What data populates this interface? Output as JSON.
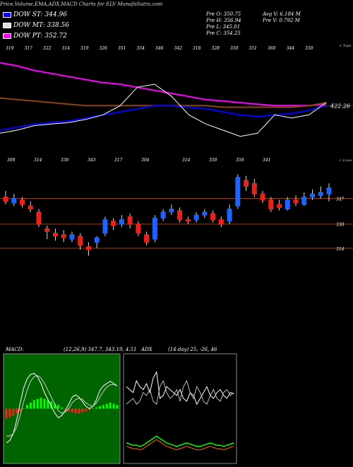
{
  "header": {
    "title": "Price,Volume,EMA,ADX,MACD Charts for ELV MunafaSutra.com"
  },
  "legend": [
    {
      "label": "DOW ST: 344.96",
      "color": "#0000ff"
    },
    {
      "label": "DOW MT: 338.56",
      "color": "#e0e0e0"
    },
    {
      "label": "DOW PT: 352.72",
      "color": "#ff00ff"
    }
  ],
  "stats": {
    "left": [
      "Pre O: 350.75",
      "Pre H: 356.94",
      "Pre L: 345.01",
      "Pre C: 354.25"
    ],
    "right": [
      "Avg V: 6.184 M",
      "Pre V: 0.792 M",
      "",
      ""
    ]
  },
  "chart_data": [
    {
      "type": "line",
      "name": "ema-panel",
      "top_label": "< Tops",
      "top_values": [
        "319",
        "317",
        "322",
        "314",
        "319",
        "326",
        "351",
        "354",
        "346",
        "342",
        "318",
        "328",
        "350",
        "351",
        "360",
        "344",
        "350"
      ],
      "level_label": "422.26",
      "series": [
        {
          "color": "#ff00ff",
          "values": [
            406,
            404,
            401,
            399,
            397,
            395,
            393,
            392,
            390,
            388,
            386,
            384,
            382,
            381,
            380,
            379,
            378,
            378,
            378,
            379
          ]
        },
        {
          "color": "#8b4513",
          "values": [
            383,
            382,
            381,
            380,
            379,
            378,
            378,
            378,
            378,
            378,
            378,
            378,
            378,
            377,
            377,
            377,
            377,
            377,
            378,
            380
          ]
        },
        {
          "color": "#0000ff",
          "values": [
            362,
            364,
            366,
            367,
            368,
            370,
            372,
            374,
            376,
            378,
            378,
            377,
            376,
            374,
            372,
            371,
            372,
            373,
            375,
            378
          ]
        },
        {
          "color": "#ffffff",
          "values": [
            360,
            362,
            365,
            366,
            367,
            369,
            372,
            378,
            390,
            392,
            384,
            372,
            366,
            362,
            358,
            360,
            372,
            370,
            372,
            380
          ]
        }
      ]
    },
    {
      "type": "bar",
      "name": "candle-panel",
      "bottom_label": "< Lows",
      "low_values": [
        "309",
        "314",
        "330",
        "343",
        "317",
        "304",
        "314",
        "350",
        "359",
        "341"
      ],
      "levels": [
        "347",
        "330",
        "314"
      ],
      "candles": [
        {
          "o": 348,
          "c": 345,
          "h": 352,
          "l": 343
        },
        {
          "o": 344,
          "c": 347,
          "h": 350,
          "l": 342
        },
        {
          "o": 346,
          "c": 343,
          "h": 348,
          "l": 341
        },
        {
          "o": 342,
          "c": 340,
          "h": 345,
          "l": 338
        },
        {
          "o": 338,
          "c": 330,
          "h": 340,
          "l": 328
        },
        {
          "o": 327,
          "c": 325,
          "h": 329,
          "l": 320
        },
        {
          "o": 324,
          "c": 322,
          "h": 327,
          "l": 319
        },
        {
          "o": 323,
          "c": 321,
          "h": 326,
          "l": 318
        },
        {
          "o": 320,
          "c": 323,
          "h": 325,
          "l": 318
        },
        {
          "o": 322,
          "c": 316,
          "h": 324,
          "l": 313
        },
        {
          "o": 315,
          "c": 313,
          "h": 318,
          "l": 309
        },
        {
          "o": 318,
          "c": 321,
          "h": 322,
          "l": 314
        },
        {
          "o": 324,
          "c": 333,
          "h": 335,
          "l": 322
        },
        {
          "o": 332,
          "c": 329,
          "h": 334,
          "l": 326
        },
        {
          "o": 330,
          "c": 333,
          "h": 336,
          "l": 328
        },
        {
          "o": 335,
          "c": 330,
          "h": 337,
          "l": 327
        },
        {
          "o": 330,
          "c": 324,
          "h": 332,
          "l": 322
        },
        {
          "o": 323,
          "c": 318,
          "h": 325,
          "l": 316
        },
        {
          "o": 320,
          "c": 334,
          "h": 336,
          "l": 318
        },
        {
          "o": 334,
          "c": 338,
          "h": 340,
          "l": 332
        },
        {
          "o": 338,
          "c": 340,
          "h": 343,
          "l": 336
        },
        {
          "o": 339,
          "c": 333,
          "h": 341,
          "l": 331
        },
        {
          "o": 333,
          "c": 332,
          "h": 335,
          "l": 330
        },
        {
          "o": 333,
          "c": 336,
          "h": 338,
          "l": 331
        },
        {
          "o": 336,
          "c": 338,
          "h": 340,
          "l": 334
        },
        {
          "o": 337,
          "c": 333,
          "h": 339,
          "l": 331
        },
        {
          "o": 333,
          "c": 330,
          "h": 335,
          "l": 328
        },
        {
          "o": 332,
          "c": 340,
          "h": 343,
          "l": 330
        },
        {
          "o": 342,
          "c": 361,
          "h": 363,
          "l": 340
        },
        {
          "o": 359,
          "c": 355,
          "h": 362,
          "l": 352
        },
        {
          "o": 357,
          "c": 350,
          "h": 360,
          "l": 348
        },
        {
          "o": 350,
          "c": 346,
          "h": 352,
          "l": 344
        },
        {
          "o": 346,
          "c": 340,
          "h": 348,
          "l": 338
        },
        {
          "o": 343,
          "c": 341,
          "h": 346,
          "l": 339
        },
        {
          "o": 340,
          "c": 346,
          "h": 348,
          "l": 339
        },
        {
          "o": 346,
          "c": 344,
          "h": 349,
          "l": 342
        },
        {
          "o": 343,
          "c": 348,
          "h": 351,
          "l": 342
        },
        {
          "o": 348,
          "c": 350,
          "h": 353,
          "l": 346
        },
        {
          "o": 349,
          "c": 351,
          "h": 355,
          "l": 347
        },
        {
          "o": 350,
          "c": 354,
          "h": 357,
          "l": 345
        }
      ]
    },
    {
      "type": "line",
      "name": "macd-panel",
      "label": "MACD:",
      "params": "(12,26,9) 347.7, 343.19, 4.51",
      "histogram": [
        -8,
        -7,
        -6,
        -4,
        -2,
        0,
        3,
        5,
        7,
        8,
        9,
        8,
        7,
        6,
        4,
        3,
        1,
        -1,
        -2,
        -3,
        -4,
        -4,
        -3,
        -2,
        -1,
        0,
        1,
        2,
        3,
        4,
        5,
        4,
        3
      ],
      "macd": [
        -30,
        -28,
        -22,
        -10,
        5,
        18,
        26,
        30,
        31,
        28,
        22,
        14,
        8,
        2,
        -4,
        -8,
        -6,
        -2,
        4,
        10,
        12,
        10,
        6,
        2,
        0,
        2,
        8,
        16,
        20,
        22,
        24,
        22,
        20
      ],
      "signal": [
        -24,
        -24,
        -22,
        -16,
        -6,
        6,
        16,
        24,
        28,
        29,
        27,
        22,
        16,
        10,
        4,
        -2,
        -4,
        -3,
        0,
        5,
        8,
        9,
        8,
        5,
        3,
        2,
        5,
        10,
        15,
        19,
        21,
        21,
        20
      ]
    },
    {
      "type": "line",
      "name": "adx-panel",
      "label": "ADX",
      "params": "(14 day) 25, -26, 46",
      "plus_di": [
        30,
        28,
        26,
        34,
        30,
        28,
        32,
        26,
        36,
        40,
        22,
        24,
        30,
        28,
        26,
        24,
        28,
        22,
        20,
        26,
        24,
        18,
        22,
        26,
        30,
        24,
        22,
        26,
        28,
        24,
        22,
        26,
        25
      ],
      "minus_di": [
        18,
        20,
        22,
        18,
        20,
        26,
        24,
        28,
        20,
        18,
        30,
        34,
        26,
        22,
        24,
        28,
        20,
        30,
        34,
        26,
        22,
        30,
        26,
        20,
        18,
        24,
        28,
        22,
        20,
        26,
        28,
        24,
        26
      ],
      "adx": [
        8,
        7,
        6,
        6,
        5,
        6,
        8,
        10,
        12,
        14,
        12,
        10,
        8,
        7,
        6,
        5,
        6,
        7,
        8,
        7,
        6,
        5,
        5,
        6,
        7,
        8,
        7,
        6,
        6,
        5,
        6,
        7,
        8
      ]
    }
  ]
}
